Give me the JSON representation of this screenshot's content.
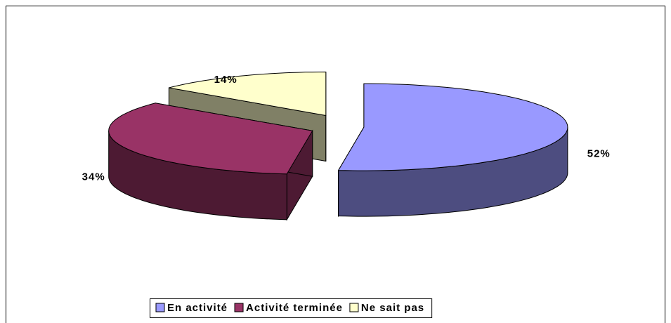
{
  "chart_data": {
    "type": "pie",
    "categories": [
      "En activité",
      "Activité terminée",
      "Ne sait pas"
    ],
    "values": [
      52,
      34,
      14
    ],
    "value_labels": [
      "52%",
      "34%",
      "14%"
    ],
    "colors": [
      "#9999ff",
      "#993366",
      "#ffffcc"
    ],
    "legend": "bottom"
  }
}
